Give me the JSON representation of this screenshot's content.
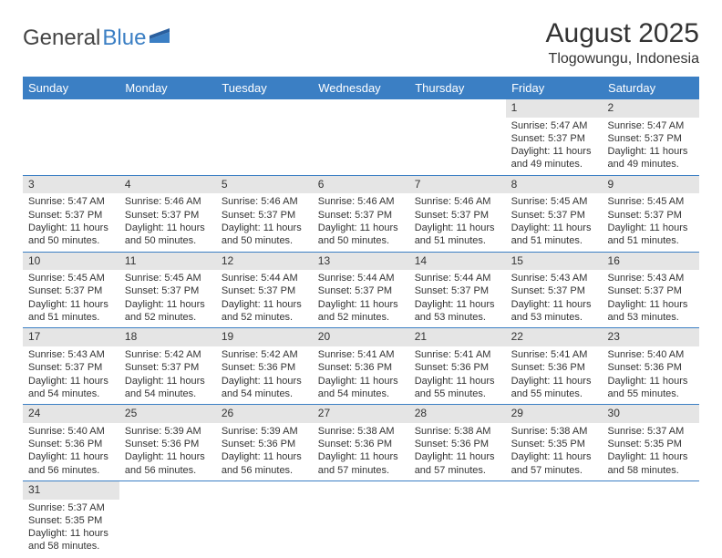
{
  "logo": {
    "part1": "General",
    "part2": "Blue"
  },
  "title": "August 2025",
  "location": "Tlogowungu, Indonesia",
  "colors": {
    "header_bg": "#3b7fc4",
    "header_text": "#ffffff",
    "daybar_bg": "#e5e5e5",
    "border": "#3b7fc4",
    "text": "#333333",
    "bg": "#ffffff"
  },
  "daysOfWeek": [
    "Sunday",
    "Monday",
    "Tuesday",
    "Wednesday",
    "Thursday",
    "Friday",
    "Saturday"
  ],
  "weeks": [
    [
      null,
      null,
      null,
      null,
      null,
      {
        "n": "1",
        "sr": "5:47 AM",
        "ss": "5:37 PM",
        "dl": "11 hours and 49 minutes."
      },
      {
        "n": "2",
        "sr": "5:47 AM",
        "ss": "5:37 PM",
        "dl": "11 hours and 49 minutes."
      }
    ],
    [
      {
        "n": "3",
        "sr": "5:47 AM",
        "ss": "5:37 PM",
        "dl": "11 hours and 50 minutes."
      },
      {
        "n": "4",
        "sr": "5:46 AM",
        "ss": "5:37 PM",
        "dl": "11 hours and 50 minutes."
      },
      {
        "n": "5",
        "sr": "5:46 AM",
        "ss": "5:37 PM",
        "dl": "11 hours and 50 minutes."
      },
      {
        "n": "6",
        "sr": "5:46 AM",
        "ss": "5:37 PM",
        "dl": "11 hours and 50 minutes."
      },
      {
        "n": "7",
        "sr": "5:46 AM",
        "ss": "5:37 PM",
        "dl": "11 hours and 51 minutes."
      },
      {
        "n": "8",
        "sr": "5:45 AM",
        "ss": "5:37 PM",
        "dl": "11 hours and 51 minutes."
      },
      {
        "n": "9",
        "sr": "5:45 AM",
        "ss": "5:37 PM",
        "dl": "11 hours and 51 minutes."
      }
    ],
    [
      {
        "n": "10",
        "sr": "5:45 AM",
        "ss": "5:37 PM",
        "dl": "11 hours and 51 minutes."
      },
      {
        "n": "11",
        "sr": "5:45 AM",
        "ss": "5:37 PM",
        "dl": "11 hours and 52 minutes."
      },
      {
        "n": "12",
        "sr": "5:44 AM",
        "ss": "5:37 PM",
        "dl": "11 hours and 52 minutes."
      },
      {
        "n": "13",
        "sr": "5:44 AM",
        "ss": "5:37 PM",
        "dl": "11 hours and 52 minutes."
      },
      {
        "n": "14",
        "sr": "5:44 AM",
        "ss": "5:37 PM",
        "dl": "11 hours and 53 minutes."
      },
      {
        "n": "15",
        "sr": "5:43 AM",
        "ss": "5:37 PM",
        "dl": "11 hours and 53 minutes."
      },
      {
        "n": "16",
        "sr": "5:43 AM",
        "ss": "5:37 PM",
        "dl": "11 hours and 53 minutes."
      }
    ],
    [
      {
        "n": "17",
        "sr": "5:43 AM",
        "ss": "5:37 PM",
        "dl": "11 hours and 54 minutes."
      },
      {
        "n": "18",
        "sr": "5:42 AM",
        "ss": "5:37 PM",
        "dl": "11 hours and 54 minutes."
      },
      {
        "n": "19",
        "sr": "5:42 AM",
        "ss": "5:36 PM",
        "dl": "11 hours and 54 minutes."
      },
      {
        "n": "20",
        "sr": "5:41 AM",
        "ss": "5:36 PM",
        "dl": "11 hours and 54 minutes."
      },
      {
        "n": "21",
        "sr": "5:41 AM",
        "ss": "5:36 PM",
        "dl": "11 hours and 55 minutes."
      },
      {
        "n": "22",
        "sr": "5:41 AM",
        "ss": "5:36 PM",
        "dl": "11 hours and 55 minutes."
      },
      {
        "n": "23",
        "sr": "5:40 AM",
        "ss": "5:36 PM",
        "dl": "11 hours and 55 minutes."
      }
    ],
    [
      {
        "n": "24",
        "sr": "5:40 AM",
        "ss": "5:36 PM",
        "dl": "11 hours and 56 minutes."
      },
      {
        "n": "25",
        "sr": "5:39 AM",
        "ss": "5:36 PM",
        "dl": "11 hours and 56 minutes."
      },
      {
        "n": "26",
        "sr": "5:39 AM",
        "ss": "5:36 PM",
        "dl": "11 hours and 56 minutes."
      },
      {
        "n": "27",
        "sr": "5:38 AM",
        "ss": "5:36 PM",
        "dl": "11 hours and 57 minutes."
      },
      {
        "n": "28",
        "sr": "5:38 AM",
        "ss": "5:36 PM",
        "dl": "11 hours and 57 minutes."
      },
      {
        "n": "29",
        "sr": "5:38 AM",
        "ss": "5:35 PM",
        "dl": "11 hours and 57 minutes."
      },
      {
        "n": "30",
        "sr": "5:37 AM",
        "ss": "5:35 PM",
        "dl": "11 hours and 58 minutes."
      }
    ],
    [
      {
        "n": "31",
        "sr": "5:37 AM",
        "ss": "5:35 PM",
        "dl": "11 hours and 58 minutes."
      },
      null,
      null,
      null,
      null,
      null,
      null
    ]
  ],
  "labels": {
    "sunrise": "Sunrise:",
    "sunset": "Sunset:",
    "daylight": "Daylight:"
  }
}
